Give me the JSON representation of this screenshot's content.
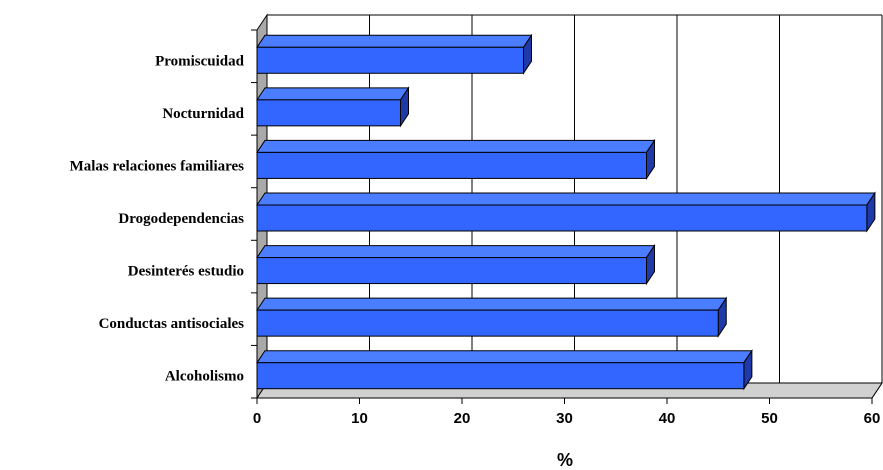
{
  "chart_data": {
    "type": "bar",
    "orientation": "horizontal",
    "style": "3d",
    "categories": [
      "Promiscuidad",
      "Nocturnidad",
      "Malas relaciones familiares",
      "Drogodependencias",
      "Desinterés estudio",
      "Conductas antisociales",
      "Alcoholismo"
    ],
    "values": [
      26,
      14,
      38,
      59.5,
      38,
      45,
      47.5
    ],
    "xlabel": "%",
    "ylabel": "",
    "xlim": [
      0,
      60
    ],
    "xticks": [
      "0",
      "10",
      "20",
      "30",
      "40",
      "50",
      "60"
    ],
    "grid": true,
    "legend": "none",
    "colors": {
      "bar_front": "#3366ff",
      "bar_top": "#4a7dff",
      "bar_side": "#1f3aa8",
      "wall": "#a9a9a9",
      "floor": "#d0d0d0"
    }
  }
}
